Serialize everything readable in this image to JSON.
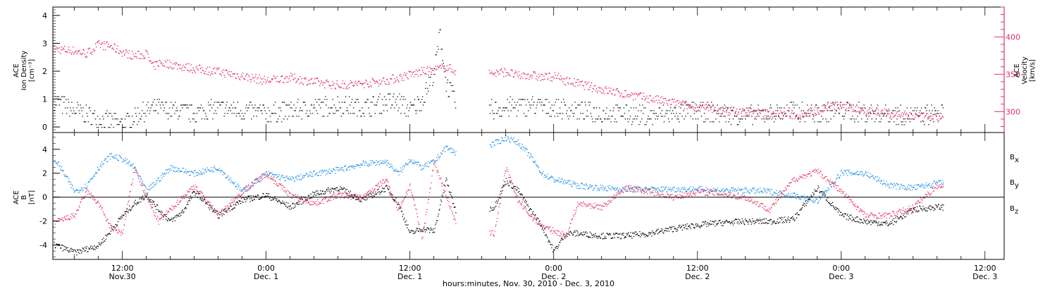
{
  "colors": {
    "black": "#000000",
    "red": "#e0335c",
    "blue": "#1f8fe6"
  },
  "x_axis": {
    "title": "hours:minutes, Nov. 30, 2010 - Dec.  3, 2010",
    "ticks": [
      {
        "t": 12,
        "time": "12:00",
        "date": "Nov.30"
      },
      {
        "t": 24,
        "time": "0:00",
        "date": "Dec. 1"
      },
      {
        "t": 36,
        "time": "12:00",
        "date": "Dec. 1"
      },
      {
        "t": 48,
        "time": "0:00",
        "date": "Dec. 2"
      },
      {
        "t": 60,
        "time": "12:00",
        "date": "Dec. 2"
      },
      {
        "t": 72,
        "time": "0:00",
        "date": "Dec. 3"
      },
      {
        "t": 84,
        "time": "12:00",
        "date": "Dec. 3"
      }
    ],
    "range_hours": [
      6.2,
      85.6
    ]
  },
  "chart_data": [
    {
      "type": "scatter",
      "panel": "top",
      "ylabel_left": [
        "ACE",
        "Ion Density",
        "[cm⁻³]"
      ],
      "ylabel_right": [
        "ACE",
        "Velocity",
        "[km/s]"
      ],
      "yticks_left": [
        "0",
        "1",
        "2",
        "3",
        "4"
      ],
      "yticks_right": [
        "300",
        "350",
        "400"
      ],
      "ylim_left": [
        -0.2,
        4.3
      ],
      "ylim_right": [
        272,
        440
      ],
      "series": [
        {
          "axis": "left",
          "color": "#000000",
          "x": [
            6.5,
            8,
            10,
            11,
            12,
            13,
            14,
            15,
            16,
            18,
            20,
            22,
            24,
            26,
            28,
            30,
            32,
            34,
            35,
            36,
            37,
            38,
            38.5,
            39,
            40,
            42,
            44,
            46,
            48,
            50,
            52,
            54,
            56,
            58,
            60,
            62,
            64,
            66,
            68,
            70,
            72,
            74,
            76,
            78,
            80
          ],
          "y": [
            0.9,
            0.6,
            0.3,
            0.2,
            0.1,
            0.4,
            0.6,
            0.7,
            0.6,
            0.5,
            0.7,
            0.6,
            0.5,
            0.6,
            0.7,
            0.8,
            0.7,
            0.9,
            0.9,
            0.6,
            1.0,
            2.0,
            3.4,
            1.6,
            0.7,
            0.6,
            0.7,
            0.8,
            0.7,
            0.6,
            0.5,
            0.5,
            0.4,
            0.5,
            0.6,
            0.5,
            0.4,
            0.5,
            0.6,
            0.5,
            0.6,
            0.5,
            0.5,
            0.4,
            0.5
          ]
        },
        {
          "axis": "right",
          "color": "#e0335c",
          "x": [
            6.5,
            8,
            9,
            10,
            11,
            12,
            13,
            14,
            14.5,
            15,
            16,
            18,
            20,
            22,
            24,
            26,
            28,
            30,
            32,
            34,
            36,
            37,
            38,
            39,
            40,
            41,
            43,
            44,
            45,
            46,
            47,
            48,
            49,
            50,
            52,
            54,
            56,
            58,
            60,
            62,
            64,
            66,
            68,
            70,
            71,
            72,
            74,
            76,
            78,
            80
          ],
          "y": [
            384,
            382,
            378,
            390,
            388,
            380,
            375,
            378,
            360,
            366,
            364,
            358,
            354,
            348,
            342,
            346,
            340,
            336,
            338,
            342,
            350,
            354,
            356,
            360,
            354,
            350,
            352,
            354,
            348,
            350,
            346,
            348,
            342,
            338,
            330,
            324,
            318,
            312,
            306,
            302,
            300,
            298,
            296,
            302,
            308,
            308,
            302,
            298,
            294,
            292
          ]
        }
      ]
    },
    {
      "type": "scatter",
      "panel": "bottom",
      "ylabel_left": [
        "ACE",
        "B",
        "[nT]"
      ],
      "yticks_left": [
        "-4",
        "-2",
        "0",
        "2",
        "4"
      ],
      "ylim_left": [
        -5.2,
        5.4
      ],
      "zero_line": true,
      "series": [
        {
          "name": "Bx",
          "label": "B",
          "sub": "x",
          "color": "#000000",
          "x": [
            6.5,
            8,
            9,
            10,
            11,
            12,
            13,
            14,
            15,
            16,
            17,
            18,
            20,
            22,
            24,
            26,
            28,
            30,
            32,
            34,
            35,
            36,
            37,
            38,
            39,
            40,
            43,
            44,
            45,
            46,
            47,
            48,
            49,
            50,
            52,
            54,
            56,
            58,
            60,
            62,
            64,
            66,
            68,
            70,
            72,
            74,
            76,
            78,
            80
          ],
          "y": [
            -4.0,
            -4.6,
            -4.3,
            -4.0,
            -2.8,
            -1.5,
            -0.5,
            0.2,
            -1.0,
            -2.0,
            -1.2,
            0.5,
            -1.5,
            -0.2,
            0.2,
            -0.8,
            0.3,
            0.8,
            -0.2,
            0.8,
            -0.5,
            -3.0,
            -2.6,
            -2.8,
            1.5,
            -1.8,
            -0.8,
            1.4,
            0.6,
            -1.0,
            -2.4,
            -4.5,
            -3.0,
            -3.0,
            -3.2,
            -3.2,
            -3.0,
            -2.6,
            -2.3,
            -2.1,
            -2.0,
            -2.0,
            -1.8,
            0.8,
            -1.5,
            -2.0,
            -2.2,
            -1.0,
            -0.8
          ]
        },
        {
          "name": "By",
          "label": "B",
          "sub": "y",
          "color": "#1f8fe6",
          "x": [
            6.5,
            8,
            9,
            10,
            11,
            12,
            13,
            14,
            16,
            18,
            20,
            22,
            24,
            26,
            28,
            30,
            32,
            34,
            35,
            36,
            37,
            38,
            39,
            40,
            43,
            44,
            45,
            46,
            47,
            48,
            49,
            50,
            52,
            54,
            56,
            58,
            60,
            62,
            64,
            66,
            68,
            70,
            72,
            74,
            76,
            78,
            80
          ],
          "y": [
            3.0,
            0.5,
            1.0,
            2.5,
            3.5,
            3.2,
            2.5,
            0.5,
            2.5,
            2.0,
            2.5,
            0.5,
            2.0,
            1.5,
            2.0,
            2.3,
            2.8,
            3.0,
            2.0,
            3.2,
            2.5,
            3.0,
            4.2,
            3.6,
            4.5,
            5.0,
            4.6,
            3.5,
            2.0,
            1.5,
            1.3,
            1.0,
            0.8,
            0.7,
            0.7,
            0.7,
            0.7,
            0.6,
            0.6,
            0.5,
            0.2,
            -0.3,
            2.1,
            2.0,
            1.0,
            0.8,
            1.2
          ]
        },
        {
          "name": "Bz",
          "label": "B",
          "sub": "z",
          "color": "#e0335c",
          "x": [
            6.5,
            8,
            9,
            10,
            11,
            12,
            13,
            14,
            15,
            16,
            18,
            20,
            22,
            24,
            26,
            28,
            30,
            32,
            34,
            35,
            36,
            37,
            38,
            39,
            40,
            43,
            44,
            45,
            46,
            47,
            48,
            49,
            50,
            52,
            54,
            56,
            58,
            60,
            62,
            64,
            66,
            68,
            70,
            72,
            74,
            76,
            78,
            80
          ],
          "y": [
            -2.0,
            -1.5,
            0.5,
            -0.5,
            -2.5,
            -3.0,
            2.5,
            0.0,
            -2.0,
            -1.0,
            1.0,
            -1.5,
            0.5,
            2.0,
            0.2,
            -0.5,
            0.2,
            0.0,
            1.5,
            -1.0,
            1.0,
            -3.5,
            3.0,
            0.2,
            -2.8,
            -3.0,
            2.4,
            -0.2,
            -1.5,
            -2.4,
            -2.8,
            -3.2,
            -0.5,
            -0.8,
            0.8,
            0.5,
            0.0,
            0.5,
            0.3,
            0.0,
            -1.0,
            1.5,
            2.2,
            0.5,
            -1.5,
            -1.5,
            -0.8,
            1.0
          ]
        }
      ]
    }
  ]
}
